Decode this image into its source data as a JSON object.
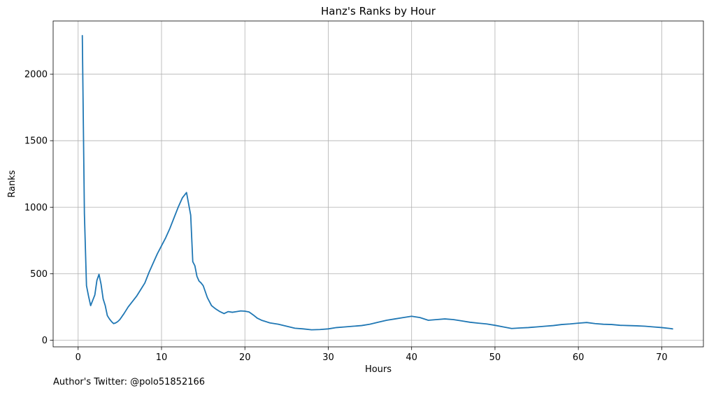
{
  "chart_data": {
    "type": "line",
    "title": "Hanz's Ranks by Hour",
    "xlabel": "Hours",
    "ylabel": "Ranks",
    "xlim": [
      -3,
      75
    ],
    "ylim": [
      -50,
      2400
    ],
    "x_ticks": [
      0,
      10,
      20,
      30,
      40,
      50,
      60,
      70
    ],
    "y_ticks": [
      0,
      500,
      1000,
      1500,
      2000
    ],
    "grid": true,
    "line_color": "#1f77b4",
    "series": [
      {
        "x": [
          0.5,
          0.75,
          1.0,
          1.25,
          1.5,
          1.75,
          2.0,
          2.25,
          2.5,
          2.75,
          3.0,
          3.25,
          3.5,
          3.75,
          4.0,
          4.25,
          4.5,
          4.75,
          5.0,
          5.5,
          6.0,
          6.5,
          7.0,
          7.5,
          8.0,
          8.5,
          9.0,
          9.5,
          10.0,
          10.5,
          11.0,
          11.5,
          12.0,
          12.5,
          13.0,
          13.5,
          13.75,
          14.0,
          14.25,
          14.5,
          14.75,
          15.0,
          15.5,
          16.0,
          16.5,
          17.0,
          17.5,
          18.0,
          18.5,
          19.0,
          19.5,
          20.0,
          20.5,
          21.0,
          21.5,
          22.0,
          23.0,
          24.0,
          25.0,
          26.0,
          27.0,
          28.0,
          29.0,
          30.0,
          31.0,
          32.0,
          33.0,
          34.0,
          35.0,
          36.0,
          37.0,
          38.0,
          39.0,
          40.0,
          41.0,
          42.0,
          43.0,
          44.0,
          45.0,
          46.0,
          47.0,
          48.0,
          49.0,
          50.0,
          51.0,
          52.0,
          53.0,
          54.0,
          55.0,
          56.0,
          57.0,
          58.0,
          59.0,
          60.0,
          61.0,
          62.0,
          63.0,
          64.0,
          65.0,
          66.0,
          67.0,
          68.0,
          69.0,
          70.0,
          71.0,
          71.3
        ],
        "y": [
          2290,
          950,
          410,
          330,
          260,
          300,
          340,
          450,
          495,
          420,
          310,
          260,
          185,
          160,
          140,
          125,
          130,
          140,
          155,
          200,
          250,
          290,
          330,
          380,
          430,
          510,
          580,
          650,
          710,
          770,
          840,
          920,
          1000,
          1070,
          1110,
          940,
          590,
          560,
          480,
          445,
          430,
          410,
          320,
          260,
          235,
          215,
          200,
          215,
          210,
          215,
          220,
          218,
          212,
          190,
          165,
          150,
          130,
          120,
          105,
          90,
          85,
          78,
          80,
          85,
          95,
          100,
          105,
          110,
          120,
          135,
          150,
          160,
          170,
          180,
          170,
          150,
          155,
          160,
          155,
          145,
          135,
          128,
          122,
          112,
          100,
          88,
          92,
          95,
          100,
          105,
          110,
          118,
          122,
          128,
          133,
          125,
          120,
          118,
          112,
          110,
          108,
          105,
          100,
          95,
          88,
          85
        ]
      }
    ]
  },
  "footnote": "Author's Twitter: @polo51852166"
}
